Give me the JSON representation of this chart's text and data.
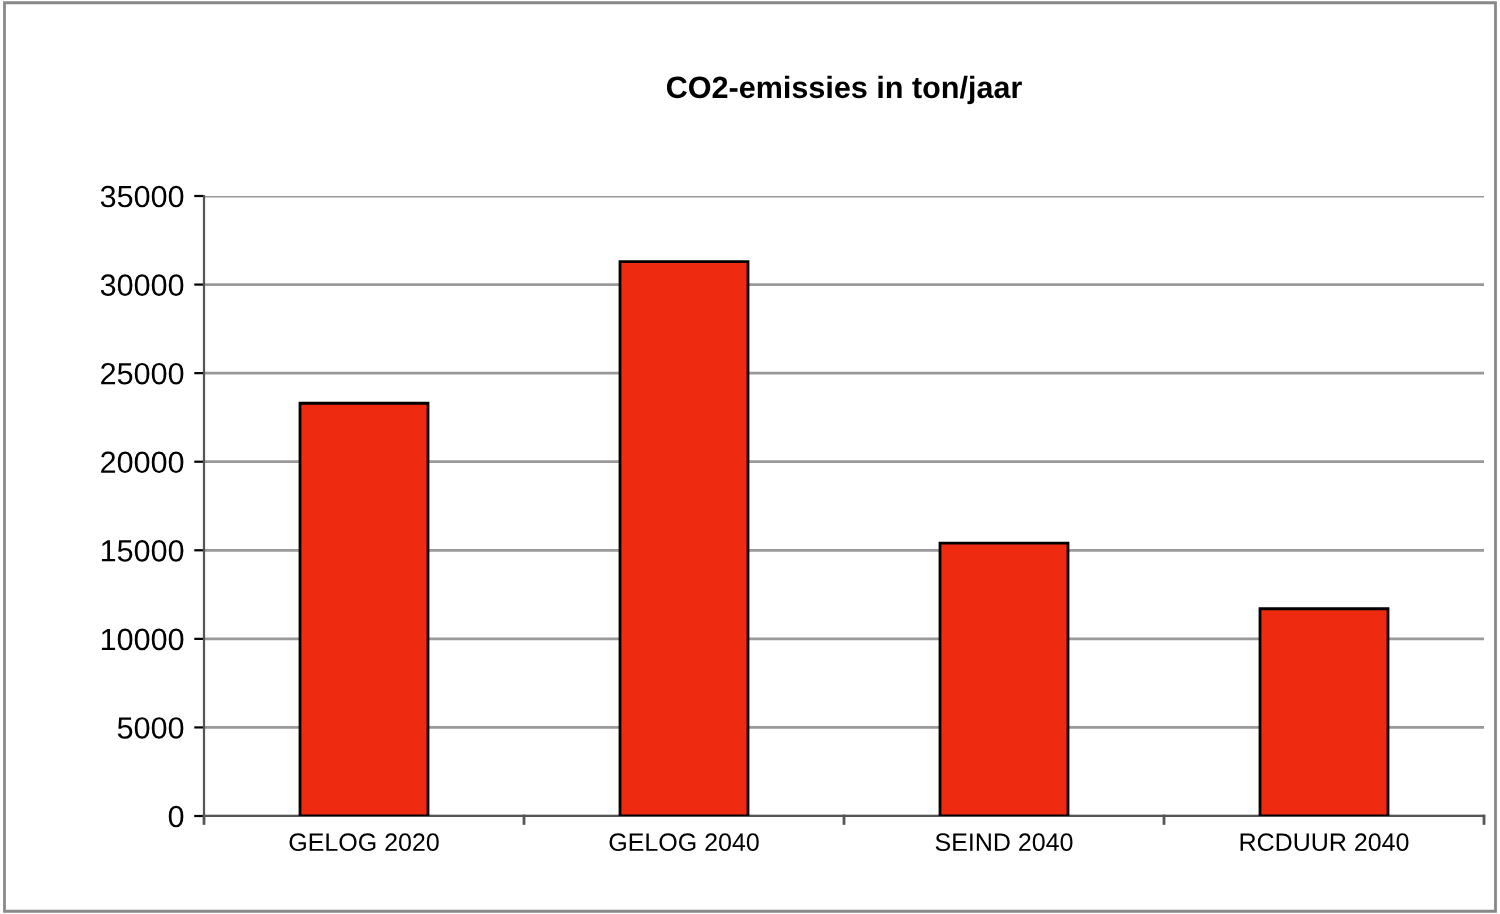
{
  "chart_data": {
    "type": "bar",
    "title": "CO2-emissies in ton/jaar",
    "categories": [
      "GELOG 2020",
      "GELOG 2040",
      "SEIND 2040",
      "RCDUUR 2040"
    ],
    "values": [
      23300,
      31300,
      15400,
      11700
    ],
    "color": "#ee2a10",
    "ylim": [
      0,
      35000
    ],
    "yticks": [
      0,
      5000,
      10000,
      15000,
      20000,
      25000,
      30000,
      35000
    ],
    "grid": "y",
    "legend": false
  }
}
